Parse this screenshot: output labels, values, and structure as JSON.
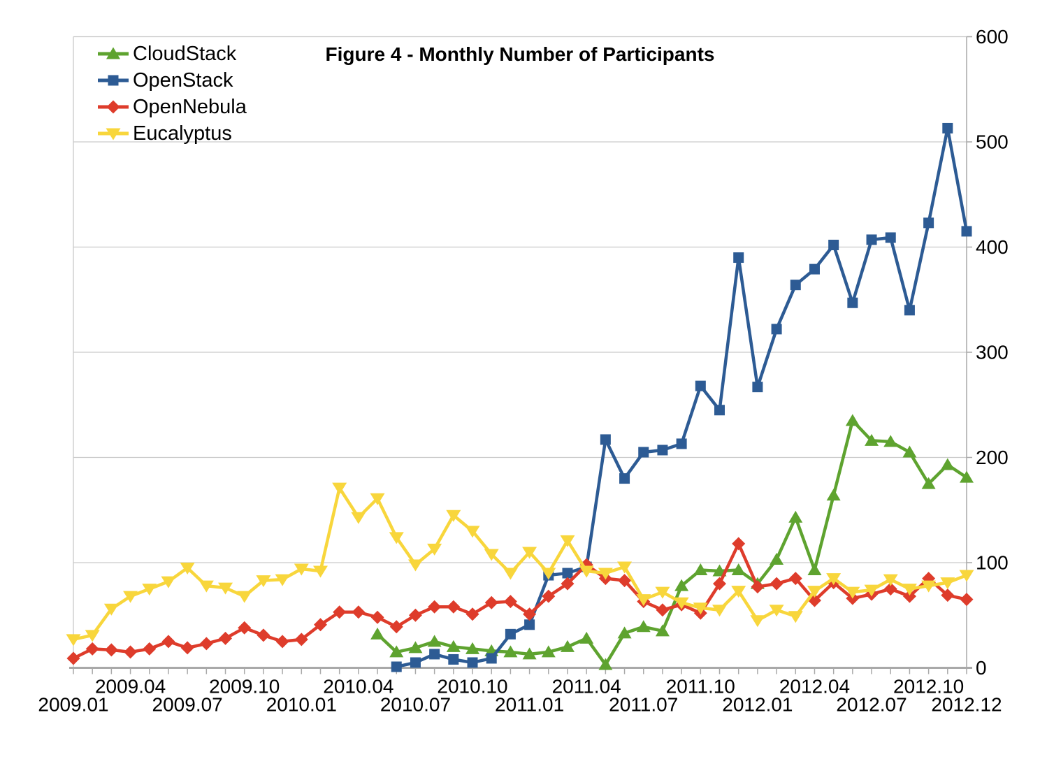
{
  "page": {
    "background": "#ffffff"
  },
  "chart_data": {
    "type": "line",
    "title": "Figure 4 - Monthly Number of Participants",
    "xlabel": "",
    "ylabel": "",
    "ylim": [
      0,
      600
    ],
    "yticks": [
      0,
      100,
      200,
      300,
      400,
      500,
      600
    ],
    "grid": true,
    "legend_position": "top-left",
    "colors": {
      "grid": "#c9c9c9",
      "axis": "#a9a9a9",
      "text": "#000000"
    },
    "categories": [
      "2009.01",
      "2009.02",
      "2009.03",
      "2009.04",
      "2009.05",
      "2009.06",
      "2009.07",
      "2009.08",
      "2009.09",
      "2009.10",
      "2009.11",
      "2009.12",
      "2010.01",
      "2010.02",
      "2010.03",
      "2010.04",
      "2010.05",
      "2010.06",
      "2010.07",
      "2010.08",
      "2010.09",
      "2010.10",
      "2010.11",
      "2010.12",
      "2011.01",
      "2011.02",
      "2011.03",
      "2011.04",
      "2011.05",
      "2011.06",
      "2011.07",
      "2011.08",
      "2011.09",
      "2011.10",
      "2011.11",
      "2011.12",
      "2012.01",
      "2012.02",
      "2012.03",
      "2012.04",
      "2012.05",
      "2012.06",
      "2012.07",
      "2012.08",
      "2012.09",
      "2012.10",
      "2012.11",
      "2012.12"
    ],
    "x_tick_rows": {
      "upper": [
        {
          "label": "2009.04",
          "month": 3
        },
        {
          "label": "2009.10",
          "month": 9
        },
        {
          "label": "2010.04",
          "month": 15
        },
        {
          "label": "2010.10",
          "month": 21
        },
        {
          "label": "2011.04",
          "month": 27
        },
        {
          "label": "2011.10",
          "month": 33
        },
        {
          "label": "2012.04",
          "month": 39
        },
        {
          "label": "2012.10",
          "month": 45
        }
      ],
      "lower": [
        {
          "label": "2009.01",
          "month": 0
        },
        {
          "label": "2009.07",
          "month": 6
        },
        {
          "label": "2010.01",
          "month": 12
        },
        {
          "label": "2010.07",
          "month": 18
        },
        {
          "label": "2011.01",
          "month": 24
        },
        {
          "label": "2011.07",
          "month": 30
        },
        {
          "label": "2012.01",
          "month": 36
        },
        {
          "label": "2012.07",
          "month": 42
        },
        {
          "label": "2012.12",
          "month": 47
        }
      ]
    },
    "series": [
      {
        "name": "CloudStack",
        "color": "#5ea32f",
        "marker": "triangle-up",
        "values": [
          null,
          null,
          null,
          null,
          null,
          null,
          null,
          null,
          null,
          null,
          null,
          null,
          null,
          null,
          null,
          null,
          32,
          15,
          19,
          25,
          20,
          18,
          16,
          15,
          13,
          15,
          20,
          28,
          3,
          33,
          39,
          35,
          78,
          93,
          92,
          93,
          80,
          103,
          143,
          93,
          164,
          235,
          216,
          215,
          205,
          175,
          193,
          181
        ]
      },
      {
        "name": "OpenStack",
        "color": "#2d5b94",
        "marker": "square",
        "values": [
          null,
          null,
          null,
          null,
          null,
          null,
          null,
          null,
          null,
          null,
          null,
          null,
          null,
          null,
          null,
          null,
          null,
          1,
          5,
          13,
          8,
          5,
          9,
          32,
          41,
          88,
          90,
          96,
          217,
          180,
          205,
          207,
          213,
          268,
          245,
          390,
          267,
          322,
          364,
          379,
          402,
          347,
          407,
          409,
          340,
          423,
          513,
          415
        ]
      },
      {
        "name": "OpenNebula",
        "color": "#de3c2b",
        "marker": "diamond",
        "values": [
          9,
          18,
          17,
          15,
          18,
          25,
          19,
          23,
          28,
          38,
          31,
          25,
          27,
          41,
          53,
          53,
          48,
          39,
          50,
          58,
          58,
          51,
          62,
          63,
          51,
          68,
          80,
          98,
          85,
          83,
          63,
          55,
          60,
          52,
          80,
          118,
          77,
          80,
          85,
          64,
          81,
          66,
          70,
          75,
          68,
          85,
          69,
          65
        ]
      },
      {
        "name": "Eucalyptus",
        "color": "#f8d63c",
        "marker": "triangle-down",
        "values": [
          27,
          31,
          56,
          68,
          75,
          82,
          95,
          78,
          76,
          68,
          83,
          84,
          94,
          92,
          171,
          143,
          161,
          124,
          98,
          113,
          145,
          130,
          108,
          90,
          110,
          90,
          121,
          92,
          90,
          96,
          65,
          72,
          62,
          57,
          55,
          73,
          45,
          55,
          49,
          73,
          85,
          72,
          74,
          84,
          75,
          78,
          81,
          88
        ]
      }
    ]
  }
}
